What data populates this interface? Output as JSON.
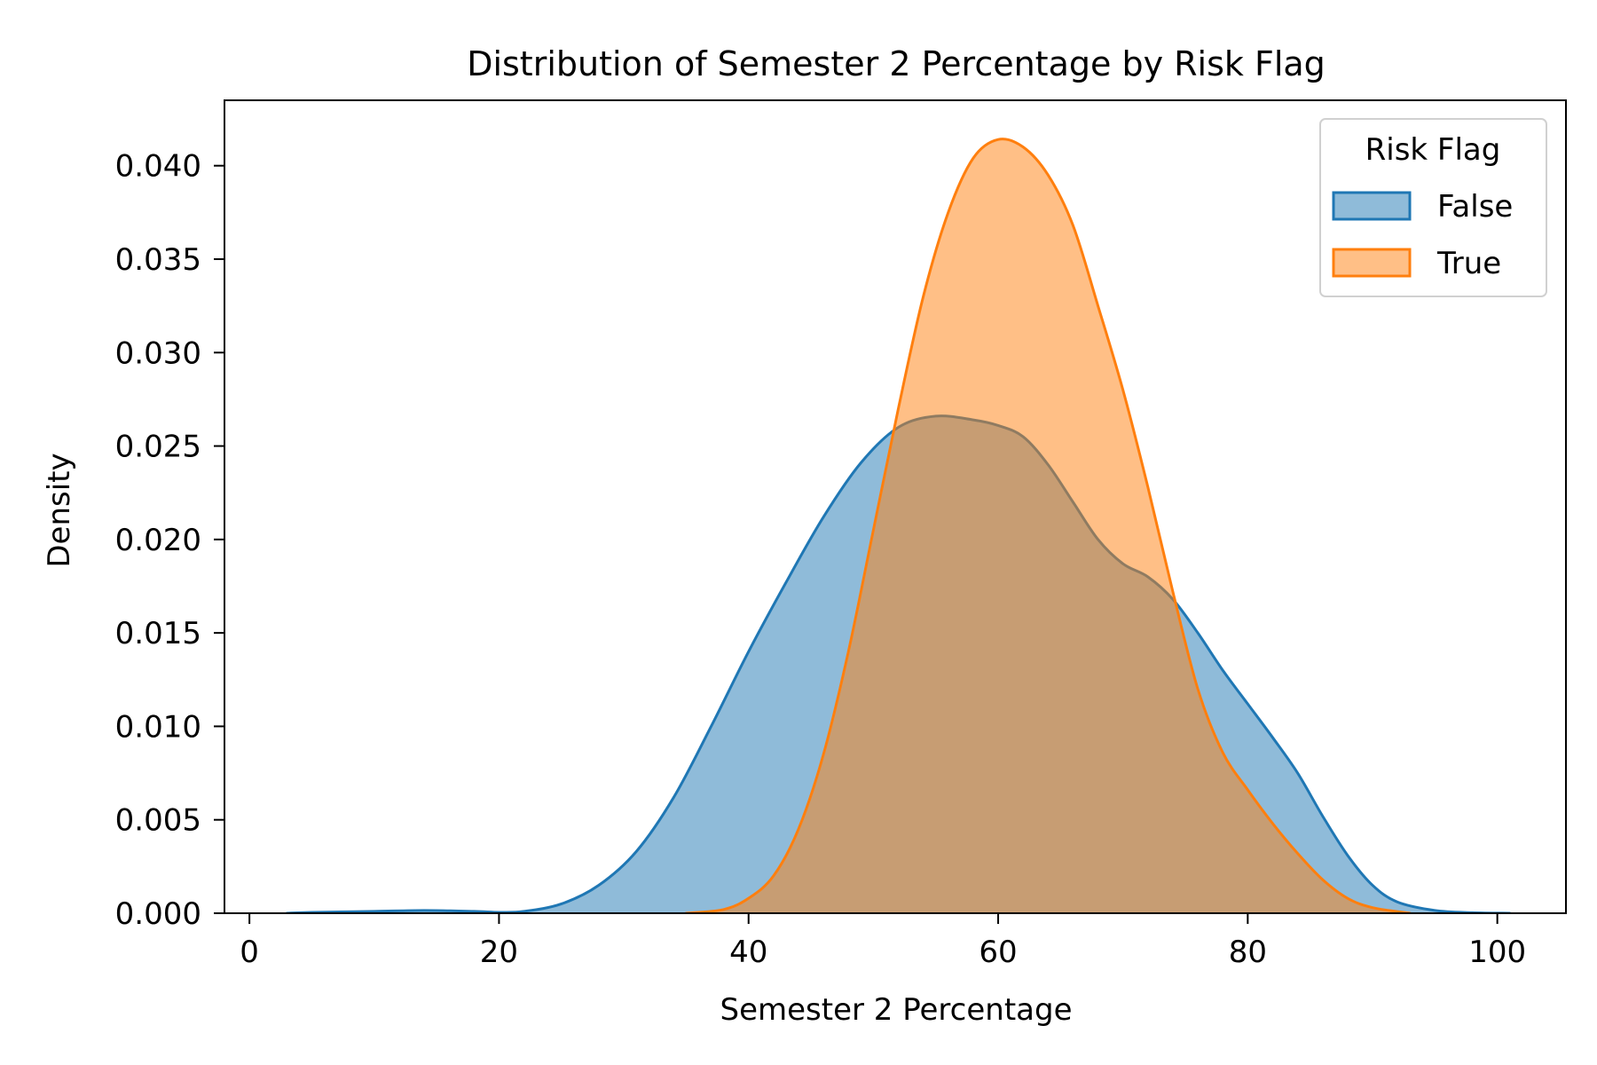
{
  "chart_data": {
    "type": "area",
    "title": "Distribution of Semester 2 Percentage by Risk Flag",
    "xlabel": "Semester 2 Percentage",
    "ylabel": "Density",
    "xlim": [
      -2,
      105.5
    ],
    "ylim": [
      0,
      0.0435
    ],
    "x_ticks": [
      0,
      20,
      40,
      60,
      80,
      100
    ],
    "y_ticks": [
      0.0,
      0.005,
      0.01,
      0.015,
      0.02,
      0.025,
      0.03,
      0.035,
      0.04
    ],
    "x_tick_labels": [
      "0",
      "20",
      "40",
      "60",
      "80",
      "100"
    ],
    "y_tick_labels": [
      "0.000",
      "0.005",
      "0.010",
      "0.015",
      "0.020",
      "0.025",
      "0.030",
      "0.035",
      "0.040"
    ],
    "legend": {
      "title": "Risk Flag",
      "placement": "top-right"
    },
    "series": [
      {
        "name": "False",
        "color": "#1f77b4",
        "fill": "#1f77b4",
        "fill_opacity": 0.5,
        "points": [
          [
            3,
            0.0
          ],
          [
            5,
            5e-05
          ],
          [
            10,
            0.0001
          ],
          [
            14,
            0.00015
          ],
          [
            18,
            0.0001
          ],
          [
            20,
            5e-05
          ],
          [
            22,
            0.0001
          ],
          [
            25,
            0.0005
          ],
          [
            28,
            0.0015
          ],
          [
            31,
            0.0033
          ],
          [
            34,
            0.0062
          ],
          [
            37,
            0.01
          ],
          [
            40,
            0.014
          ],
          [
            43,
            0.0177
          ],
          [
            46,
            0.0212
          ],
          [
            49,
            0.0241
          ],
          [
            52,
            0.026
          ],
          [
            55,
            0.0266
          ],
          [
            58,
            0.0264
          ],
          [
            60,
            0.0261
          ],
          [
            62,
            0.0255
          ],
          [
            64,
            0.024
          ],
          [
            66,
            0.022
          ],
          [
            68,
            0.02
          ],
          [
            70,
            0.0187
          ],
          [
            72,
            0.018
          ],
          [
            74,
            0.0168
          ],
          [
            76,
            0.015
          ],
          [
            78,
            0.013
          ],
          [
            80,
            0.0112
          ],
          [
            82,
            0.0094
          ],
          [
            84,
            0.0075
          ],
          [
            86,
            0.0052
          ],
          [
            88,
            0.0031
          ],
          [
            90,
            0.0015
          ],
          [
            92,
            0.0006
          ],
          [
            95,
            0.00015
          ],
          [
            98,
            3e-05
          ],
          [
            101,
            0.0
          ]
        ]
      },
      {
        "name": "True",
        "color": "#ff7f0e",
        "fill": "#ff7f0e",
        "fill_opacity": 0.5,
        "points": [
          [
            35,
            0.0
          ],
          [
            38,
            0.0002
          ],
          [
            40,
            0.0008
          ],
          [
            42,
            0.002
          ],
          [
            44,
            0.0045
          ],
          [
            46,
            0.0085
          ],
          [
            48,
            0.014
          ],
          [
            50,
            0.0205
          ],
          [
            52,
            0.027
          ],
          [
            54,
            0.033
          ],
          [
            56,
            0.0375
          ],
          [
            58,
            0.0404
          ],
          [
            60,
            0.0414
          ],
          [
            62,
            0.041
          ],
          [
            64,
            0.0395
          ],
          [
            66,
            0.0368
          ],
          [
            68,
            0.0325
          ],
          [
            70,
            0.028
          ],
          [
            72,
            0.0228
          ],
          [
            74,
            0.0172
          ],
          [
            76,
            0.012
          ],
          [
            78,
            0.0086
          ],
          [
            80,
            0.0066
          ],
          [
            82,
            0.0048
          ],
          [
            84,
            0.0032
          ],
          [
            86,
            0.0018
          ],
          [
            88,
            0.0008
          ],
          [
            90,
            0.0003
          ],
          [
            93,
            0.0
          ]
        ]
      }
    ]
  }
}
